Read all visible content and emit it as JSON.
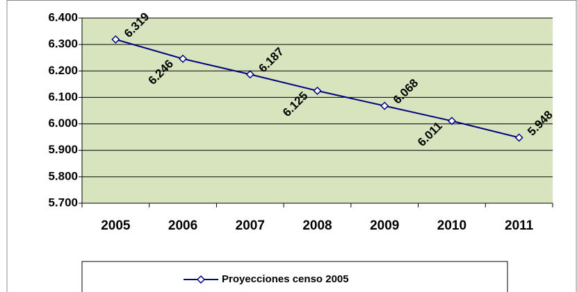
{
  "chart_data": {
    "type": "line",
    "categories": [
      "2005",
      "2006",
      "2007",
      "2008",
      "2009",
      "2010",
      "2011"
    ],
    "series": [
      {
        "name": "Proyecciones censo 2005",
        "color": "#000080",
        "values": [
          6319,
          6246,
          6187,
          6125,
          6068,
          6011,
          5948
        ],
        "value_labels": [
          "6.319",
          "6.246",
          "6.187",
          "6.125",
          "6.068",
          "6.011",
          "5.948"
        ]
      }
    ],
    "ylim": [
      5700,
      6400
    ],
    "yticks": [
      {
        "value": 5700,
        "label": "5.700"
      },
      {
        "value": 5800,
        "label": "5.800"
      },
      {
        "value": 5900,
        "label": "5.900"
      },
      {
        "value": 6000,
        "label": "6.000"
      },
      {
        "value": 6100,
        "label": "6.100"
      },
      {
        "value": 6200,
        "label": "6.200"
      },
      {
        "value": 6300,
        "label": "6.300"
      },
      {
        "value": 6400,
        "label": "6.400"
      }
    ],
    "grid": true,
    "plot_background": "#d7e4bd",
    "legend": "bottom"
  }
}
